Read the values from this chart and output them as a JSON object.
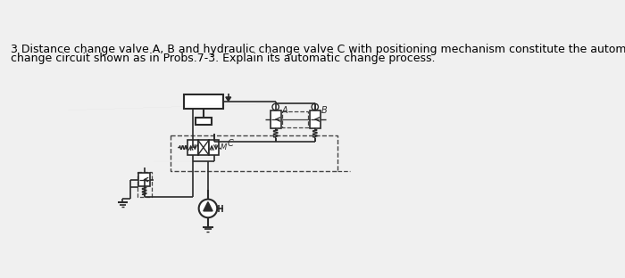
{
  "title_line1": "3 Distance change valve A, B and hydraulic change valve C with positioning mechanism constitute the automatic",
  "title_line2": "change circuit shown as in Probs.7-3. Explain its automatic change process.",
  "title_fontsize": 9.0,
  "bg_color": "#f0f0f0",
  "line_color": "#2a2a2a",
  "dashed_color": "#444444",
  "figsize": [
    7.0,
    3.12
  ],
  "dpi": 100,
  "label_A": "A",
  "label_B": "B",
  "label_C": "C"
}
